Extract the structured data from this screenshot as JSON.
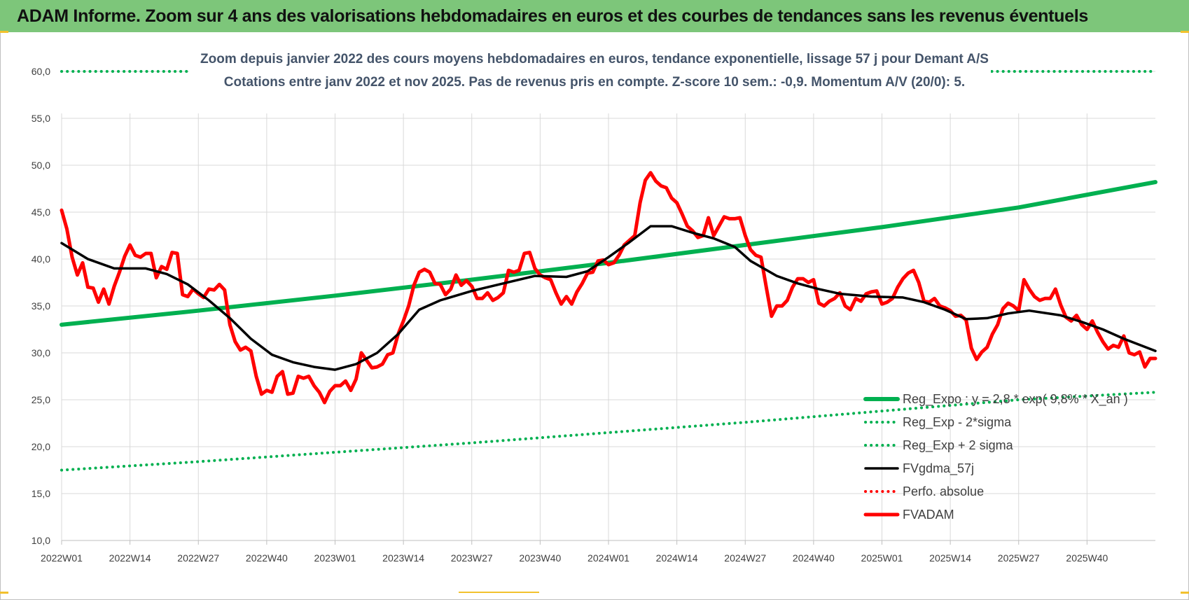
{
  "header": {
    "title": "ADAM Informe. Zoom sur 4 ans des valorisations hebdomadaires en euros et des courbes de tendances sans les revenus éventuels"
  },
  "colors": {
    "header_bg": "#7dc67a",
    "reg_expo": "#00b050",
    "band": "#00b050",
    "fvgdma": "#000000",
    "perfo": "#ff0000",
    "fvadam": "#ff0000"
  },
  "chart_data": {
    "type": "line",
    "title": "Zoom depuis janvier 2022 des cours moyens hebdomadaires en euros, tendance exponentielle, lissage 57 j pour Demant A/S",
    "subtitle": "Cotations entre janv 2022 et nov 2025. Pas de revenus pris en compte. Z-score 10 sem.: -0,9. Momentum A/V (20/0): 5.",
    "ylim": [
      10,
      60
    ],
    "yticks": [
      "60,0",
      "55,0",
      "50,0",
      "45,0",
      "40,0",
      "35,0",
      "30,0",
      "25,0",
      "20,0",
      "15,0",
      "10,0"
    ],
    "xticks": [
      "2022W01",
      "2022W14",
      "2022W27",
      "2022W40",
      "2023W01",
      "2023W14",
      "2023W27",
      "2023W40",
      "2024W01",
      "2024W14",
      "2024W27",
      "2024W40",
      "2025W01",
      "2025W14",
      "2025W27",
      "2025W40"
    ],
    "grid": true,
    "legend_position": "bottom-right",
    "series": [
      {
        "name": "Reg_Expo : y = 2,8 * exp( 9,8% * X_an )",
        "style": "solid-thick",
        "color": "#00b050",
        "values": [
          [
            0,
            33.0
          ],
          [
            26,
            34.5
          ],
          [
            52,
            36.1
          ],
          [
            78,
            37.8
          ],
          [
            104,
            39.6
          ],
          [
            130,
            41.5
          ],
          [
            156,
            43.4
          ],
          [
            182,
            45.5
          ],
          [
            208,
            48.2
          ]
        ]
      },
      {
        "name": "Reg_Exp - 2*sigma",
        "style": "dotted",
        "color": "#00b050",
        "values": [
          [
            0,
            17.5
          ],
          [
            26,
            18.4
          ],
          [
            52,
            19.4
          ],
          [
            78,
            20.4
          ],
          [
            104,
            21.5
          ],
          [
            130,
            22.6
          ],
          [
            156,
            23.8
          ],
          [
            182,
            25.0
          ],
          [
            208,
            25.8
          ]
        ]
      },
      {
        "name": "Reg_Exp + 2 sigma",
        "style": "dotted",
        "color": "#00b050",
        "values": [
          [
            0,
            60.0
          ],
          [
            208,
            60.0
          ]
        ]
      },
      {
        "name": "FVgdma_57j",
        "style": "solid",
        "color": "#000000",
        "values": [
          [
            0,
            41.7
          ],
          [
            5,
            40.0
          ],
          [
            10,
            39.0
          ],
          [
            16,
            39.0
          ],
          [
            20,
            38.4
          ],
          [
            24,
            37.3
          ],
          [
            28,
            35.6
          ],
          [
            32,
            33.7
          ],
          [
            36,
            31.5
          ],
          [
            40,
            29.8
          ],
          [
            44,
            29.0
          ],
          [
            48,
            28.5
          ],
          [
            52,
            28.2
          ],
          [
            56,
            28.8
          ],
          [
            60,
            30.0
          ],
          [
            64,
            32.0
          ],
          [
            68,
            34.6
          ],
          [
            72,
            35.6
          ],
          [
            78,
            36.6
          ],
          [
            84,
            37.4
          ],
          [
            90,
            38.2
          ],
          [
            96,
            38.1
          ],
          [
            100,
            38.7
          ],
          [
            104,
            40.2
          ],
          [
            108,
            41.8
          ],
          [
            112,
            43.5
          ],
          [
            116,
            43.5
          ],
          [
            120,
            42.8
          ],
          [
            124,
            42.2
          ],
          [
            128,
            41.3
          ],
          [
            131,
            39.8
          ],
          [
            136,
            38.2
          ],
          [
            140,
            37.4
          ],
          [
            144,
            36.8
          ],
          [
            148,
            36.3
          ],
          [
            154,
            36.0
          ],
          [
            160,
            35.9
          ],
          [
            164,
            35.4
          ],
          [
            168,
            34.6
          ],
          [
            172,
            33.6
          ],
          [
            176,
            33.7
          ],
          [
            180,
            34.2
          ],
          [
            184,
            34.5
          ],
          [
            190,
            34.0
          ],
          [
            194,
            33.3
          ],
          [
            198,
            32.5
          ],
          [
            202,
            31.5
          ],
          [
            208,
            30.2
          ]
        ]
      },
      {
        "name": "Perfo. absolue",
        "style": "dotted",
        "color": "#ff0000",
        "values": []
      },
      {
        "name": "FVADAM",
        "style": "solid-thick",
        "color": "#ff0000",
        "values": [
          [
            0,
            45.2
          ],
          [
            1,
            43.2
          ],
          [
            2,
            40.2
          ],
          [
            3,
            38.3
          ],
          [
            4,
            39.6
          ],
          [
            5,
            37.0
          ],
          [
            6,
            36.9
          ],
          [
            7,
            35.4
          ],
          [
            8,
            36.8
          ],
          [
            9,
            35.2
          ],
          [
            10,
            37.1
          ],
          [
            11,
            38.6
          ],
          [
            12,
            40.3
          ],
          [
            13,
            41.5
          ],
          [
            14,
            40.4
          ],
          [
            15,
            40.2
          ],
          [
            16,
            40.6
          ],
          [
            17,
            40.6
          ],
          [
            18,
            38.0
          ],
          [
            19,
            39.2
          ],
          [
            20,
            38.9
          ],
          [
            21,
            40.7
          ],
          [
            22,
            40.6
          ],
          [
            23,
            36.2
          ],
          [
            24,
            36.0
          ],
          [
            25,
            36.8
          ],
          [
            26,
            36.3
          ],
          [
            27,
            35.9
          ],
          [
            28,
            36.8
          ],
          [
            29,
            36.7
          ],
          [
            30,
            37.3
          ],
          [
            31,
            36.7
          ],
          [
            32,
            33.0
          ],
          [
            33,
            31.2
          ],
          [
            34,
            30.3
          ],
          [
            35,
            30.6
          ],
          [
            36,
            30.2
          ],
          [
            37,
            27.5
          ],
          [
            38,
            25.6
          ],
          [
            39,
            26.0
          ],
          [
            40,
            25.8
          ],
          [
            41,
            27.5
          ],
          [
            42,
            28.0
          ],
          [
            43,
            25.6
          ],
          [
            44,
            25.7
          ],
          [
            45,
            27.5
          ],
          [
            46,
            27.3
          ],
          [
            47,
            27.5
          ],
          [
            48,
            26.5
          ],
          [
            49,
            25.8
          ],
          [
            50,
            24.7
          ],
          [
            51,
            25.9
          ],
          [
            52,
            26.5
          ],
          [
            53,
            26.5
          ],
          [
            54,
            27.0
          ],
          [
            55,
            26.0
          ],
          [
            56,
            27.2
          ],
          [
            57,
            30.0
          ],
          [
            58,
            29.2
          ],
          [
            59,
            28.4
          ],
          [
            60,
            28.5
          ],
          [
            61,
            28.8
          ],
          [
            62,
            29.8
          ],
          [
            63,
            30.0
          ],
          [
            64,
            32.0
          ],
          [
            65,
            33.4
          ],
          [
            66,
            35.0
          ],
          [
            67,
            37.2
          ],
          [
            68,
            38.6
          ],
          [
            69,
            38.9
          ],
          [
            70,
            38.6
          ],
          [
            71,
            37.4
          ],
          [
            72,
            37.3
          ],
          [
            73,
            36.2
          ],
          [
            74,
            36.8
          ],
          [
            75,
            38.3
          ],
          [
            76,
            37.2
          ],
          [
            77,
            37.7
          ],
          [
            78,
            37.1
          ],
          [
            79,
            35.8
          ],
          [
            80,
            35.8
          ],
          [
            81,
            36.4
          ],
          [
            82,
            35.6
          ],
          [
            83,
            35.9
          ],
          [
            84,
            36.4
          ],
          [
            85,
            38.8
          ],
          [
            86,
            38.6
          ],
          [
            87,
            38.8
          ],
          [
            88,
            40.6
          ],
          [
            89,
            40.7
          ],
          [
            90,
            39.0
          ],
          [
            91,
            38.3
          ],
          [
            92,
            38.0
          ],
          [
            93,
            37.8
          ],
          [
            94,
            36.4
          ],
          [
            95,
            35.2
          ],
          [
            96,
            36.0
          ],
          [
            97,
            35.2
          ],
          [
            98,
            36.5
          ],
          [
            99,
            37.4
          ],
          [
            100,
            38.5
          ],
          [
            101,
            38.6
          ],
          [
            102,
            39.8
          ],
          [
            103,
            39.9
          ],
          [
            104,
            39.4
          ],
          [
            105,
            39.6
          ],
          [
            106,
            40.4
          ],
          [
            107,
            41.5
          ],
          [
            108,
            42.0
          ],
          [
            109,
            42.5
          ],
          [
            110,
            46.0
          ],
          [
            111,
            48.4
          ],
          [
            112,
            49.2
          ],
          [
            113,
            48.3
          ],
          [
            114,
            47.8
          ],
          [
            115,
            47.6
          ],
          [
            116,
            46.5
          ],
          [
            117,
            46.0
          ],
          [
            118,
            44.8
          ],
          [
            119,
            43.5
          ],
          [
            120,
            43.0
          ],
          [
            121,
            42.3
          ],
          [
            122,
            42.5
          ],
          [
            123,
            44.4
          ],
          [
            124,
            42.5
          ],
          [
            125,
            43.5
          ],
          [
            126,
            44.5
          ],
          [
            127,
            44.3
          ],
          [
            128,
            44.3
          ],
          [
            129,
            44.4
          ],
          [
            130,
            42.5
          ],
          [
            131,
            41.0
          ],
          [
            132,
            40.4
          ],
          [
            133,
            40.2
          ],
          [
            134,
            37.0
          ],
          [
            135,
            33.9
          ],
          [
            136,
            35.0
          ],
          [
            137,
            35.0
          ],
          [
            138,
            35.6
          ],
          [
            139,
            37.0
          ],
          [
            140,
            37.9
          ],
          [
            141,
            37.9
          ],
          [
            142,
            37.5
          ],
          [
            143,
            37.8
          ],
          [
            144,
            35.3
          ],
          [
            145,
            35.0
          ],
          [
            146,
            35.5
          ],
          [
            147,
            35.8
          ],
          [
            148,
            36.4
          ],
          [
            149,
            35.0
          ],
          [
            150,
            34.6
          ],
          [
            151,
            35.8
          ],
          [
            152,
            35.5
          ],
          [
            153,
            36.3
          ],
          [
            154,
            36.5
          ],
          [
            155,
            36.6
          ],
          [
            156,
            35.2
          ],
          [
            157,
            35.4
          ],
          [
            158,
            35.8
          ],
          [
            159,
            37.0
          ],
          [
            160,
            37.9
          ],
          [
            161,
            38.5
          ],
          [
            162,
            38.8
          ],
          [
            163,
            37.5
          ],
          [
            164,
            35.5
          ],
          [
            165,
            35.4
          ],
          [
            166,
            35.8
          ],
          [
            167,
            35.0
          ],
          [
            168,
            34.8
          ],
          [
            169,
            34.5
          ],
          [
            170,
            33.9
          ],
          [
            171,
            34.0
          ],
          [
            172,
            33.5
          ],
          [
            173,
            30.5
          ],
          [
            174,
            29.3
          ],
          [
            175,
            30.1
          ],
          [
            176,
            30.6
          ],
          [
            177,
            32.0
          ],
          [
            178,
            33.0
          ],
          [
            179,
            34.7
          ],
          [
            180,
            35.3
          ],
          [
            181,
            35.0
          ],
          [
            182,
            34.5
          ],
          [
            183,
            37.8
          ],
          [
            184,
            36.8
          ],
          [
            185,
            36.0
          ],
          [
            186,
            35.6
          ],
          [
            187,
            35.8
          ],
          [
            188,
            35.8
          ],
          [
            189,
            36.8
          ],
          [
            190,
            35.1
          ],
          [
            191,
            33.8
          ],
          [
            192,
            33.4
          ],
          [
            193,
            34.0
          ],
          [
            194,
            33.0
          ],
          [
            195,
            32.5
          ],
          [
            196,
            33.4
          ],
          [
            197,
            32.2
          ],
          [
            198,
            31.2
          ],
          [
            199,
            30.4
          ],
          [
            200,
            30.8
          ],
          [
            201,
            30.6
          ],
          [
            202,
            31.8
          ],
          [
            203,
            30.0
          ],
          [
            204,
            29.8
          ],
          [
            205,
            30.1
          ],
          [
            206,
            28.5
          ],
          [
            207,
            29.4
          ],
          [
            208,
            29.4
          ]
        ]
      }
    ]
  }
}
